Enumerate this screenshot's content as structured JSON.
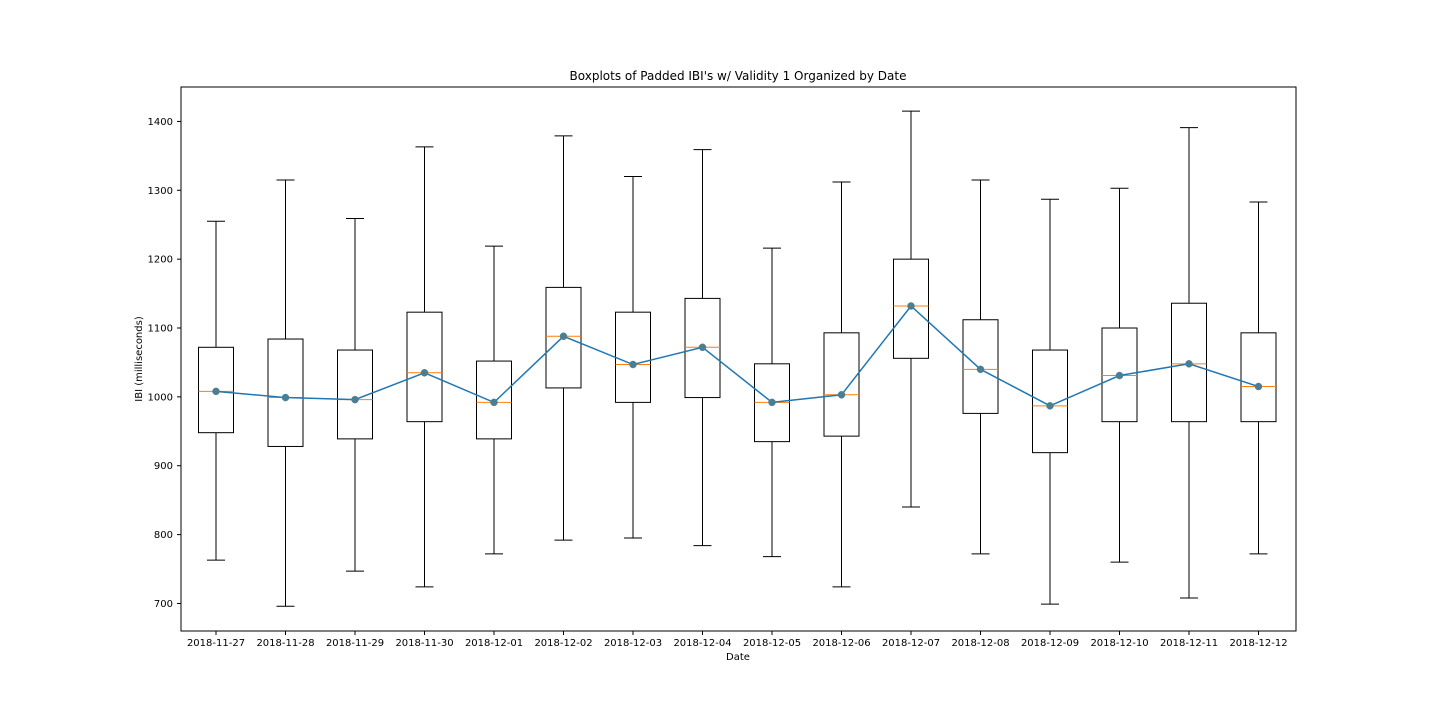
{
  "chart_data": {
    "type": "box",
    "title": "Boxplots of Padded IBI's w/ Validity 1 Organized by Date",
    "xlabel": "Date",
    "ylabel": "IBI (milliseconds)",
    "ylim": [
      660,
      1450
    ],
    "yticks": [
      700,
      800,
      900,
      1000,
      1100,
      1200,
      1300,
      1400
    ],
    "grid": false,
    "categories": [
      "2018-11-27",
      "2018-11-28",
      "2018-11-29",
      "2018-11-30",
      "2018-12-01",
      "2018-12-02",
      "2018-12-03",
      "2018-12-04",
      "2018-12-05",
      "2018-12-06",
      "2018-12-07",
      "2018-12-08",
      "2018-12-09",
      "2018-12-10",
      "2018-12-11",
      "2018-12-12"
    ],
    "boxes": [
      {
        "whisker_low": 763,
        "q1": 948,
        "median": 1008,
        "q3": 1072,
        "whisker_high": 1255
      },
      {
        "whisker_low": 696,
        "q1": 928,
        "median": 999,
        "q3": 1084,
        "whisker_high": 1315
      },
      {
        "whisker_low": 747,
        "q1": 939,
        "median": 996,
        "q3": 1068,
        "whisker_high": 1259
      },
      {
        "whisker_low": 724,
        "q1": 964,
        "median": 1035,
        "q3": 1123,
        "whisker_high": 1363
      },
      {
        "whisker_low": 772,
        "q1": 939,
        "median": 992,
        "q3": 1052,
        "whisker_high": 1219
      },
      {
        "whisker_low": 792,
        "q1": 1013,
        "median": 1088,
        "q3": 1159,
        "whisker_high": 1379
      },
      {
        "whisker_low": 795,
        "q1": 992,
        "median": 1047,
        "q3": 1123,
        "whisker_high": 1320
      },
      {
        "whisker_low": 784,
        "q1": 999,
        "median": 1072,
        "q3": 1143,
        "whisker_high": 1359
      },
      {
        "whisker_low": 768,
        "q1": 935,
        "median": 992,
        "q3": 1048,
        "whisker_high": 1216
      },
      {
        "whisker_low": 724,
        "q1": 943,
        "median": 1003,
        "q3": 1093,
        "whisker_high": 1312
      },
      {
        "whisker_low": 840,
        "q1": 1056,
        "median": 1132,
        "q3": 1200,
        "whisker_high": 1415
      },
      {
        "whisker_low": 772,
        "q1": 976,
        "median": 1040,
        "q3": 1112,
        "whisker_high": 1315
      },
      {
        "whisker_low": 699,
        "q1": 919,
        "median": 987,
        "q3": 1068,
        "whisker_high": 1287
      },
      {
        "whisker_low": 760,
        "q1": 964,
        "median": 1031,
        "q3": 1100,
        "whisker_high": 1303
      },
      {
        "whisker_low": 708,
        "q1": 964,
        "median": 1048,
        "q3": 1136,
        "whisker_high": 1391
      },
      {
        "whisker_low": 772,
        "q1": 964,
        "median": 1015,
        "q3": 1093,
        "whisker_high": 1283
      }
    ],
    "overlay_line": {
      "type": "line-with-markers",
      "values": [
        1008,
        999,
        996,
        1035,
        992,
        1088,
        1047,
        1072,
        992,
        1003,
        1132,
        1040,
        987,
        1031,
        1048,
        1015
      ]
    },
    "colors": {
      "box": "#000000",
      "median": "#ff7f0e",
      "line": "#1f77b4",
      "marker": "#4a7f93"
    }
  }
}
